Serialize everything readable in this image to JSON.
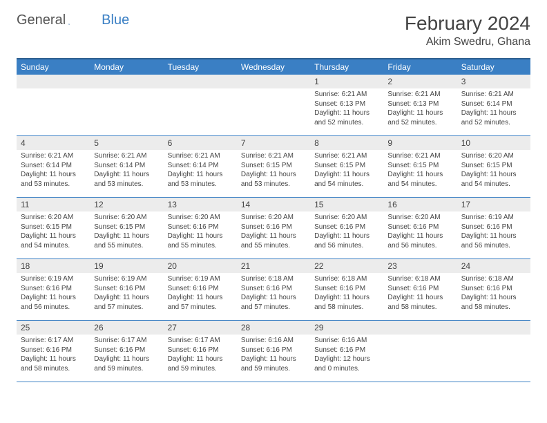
{
  "logo": {
    "text1": "General",
    "text2": "Blue"
  },
  "title": "February 2024",
  "location": "Akim Swedru, Ghana",
  "colors": {
    "header_bg": "#3a7fc4",
    "header_border_top": "#2e5f8f",
    "daynum_bg": "#ececec",
    "row_border": "#3a7fc4",
    "text": "#444444",
    "body_bg": "#ffffff"
  },
  "daynames": [
    "Sunday",
    "Monday",
    "Tuesday",
    "Wednesday",
    "Thursday",
    "Friday",
    "Saturday"
  ],
  "weeks": [
    {
      "nums": [
        "",
        "",
        "",
        "",
        "1",
        "2",
        "3"
      ],
      "cells": [
        null,
        null,
        null,
        null,
        {
          "sr": "Sunrise: 6:21 AM",
          "ss": "Sunset: 6:13 PM",
          "dl": "Daylight: 11 hours and 52 minutes."
        },
        {
          "sr": "Sunrise: 6:21 AM",
          "ss": "Sunset: 6:13 PM",
          "dl": "Daylight: 11 hours and 52 minutes."
        },
        {
          "sr": "Sunrise: 6:21 AM",
          "ss": "Sunset: 6:14 PM",
          "dl": "Daylight: 11 hours and 52 minutes."
        }
      ]
    },
    {
      "nums": [
        "4",
        "5",
        "6",
        "7",
        "8",
        "9",
        "10"
      ],
      "cells": [
        {
          "sr": "Sunrise: 6:21 AM",
          "ss": "Sunset: 6:14 PM",
          "dl": "Daylight: 11 hours and 53 minutes."
        },
        {
          "sr": "Sunrise: 6:21 AM",
          "ss": "Sunset: 6:14 PM",
          "dl": "Daylight: 11 hours and 53 minutes."
        },
        {
          "sr": "Sunrise: 6:21 AM",
          "ss": "Sunset: 6:14 PM",
          "dl": "Daylight: 11 hours and 53 minutes."
        },
        {
          "sr": "Sunrise: 6:21 AM",
          "ss": "Sunset: 6:15 PM",
          "dl": "Daylight: 11 hours and 53 minutes."
        },
        {
          "sr": "Sunrise: 6:21 AM",
          "ss": "Sunset: 6:15 PM",
          "dl": "Daylight: 11 hours and 54 minutes."
        },
        {
          "sr": "Sunrise: 6:21 AM",
          "ss": "Sunset: 6:15 PM",
          "dl": "Daylight: 11 hours and 54 minutes."
        },
        {
          "sr": "Sunrise: 6:20 AM",
          "ss": "Sunset: 6:15 PM",
          "dl": "Daylight: 11 hours and 54 minutes."
        }
      ]
    },
    {
      "nums": [
        "11",
        "12",
        "13",
        "14",
        "15",
        "16",
        "17"
      ],
      "cells": [
        {
          "sr": "Sunrise: 6:20 AM",
          "ss": "Sunset: 6:15 PM",
          "dl": "Daylight: 11 hours and 54 minutes."
        },
        {
          "sr": "Sunrise: 6:20 AM",
          "ss": "Sunset: 6:15 PM",
          "dl": "Daylight: 11 hours and 55 minutes."
        },
        {
          "sr": "Sunrise: 6:20 AM",
          "ss": "Sunset: 6:16 PM",
          "dl": "Daylight: 11 hours and 55 minutes."
        },
        {
          "sr": "Sunrise: 6:20 AM",
          "ss": "Sunset: 6:16 PM",
          "dl": "Daylight: 11 hours and 55 minutes."
        },
        {
          "sr": "Sunrise: 6:20 AM",
          "ss": "Sunset: 6:16 PM",
          "dl": "Daylight: 11 hours and 56 minutes."
        },
        {
          "sr": "Sunrise: 6:20 AM",
          "ss": "Sunset: 6:16 PM",
          "dl": "Daylight: 11 hours and 56 minutes."
        },
        {
          "sr": "Sunrise: 6:19 AM",
          "ss": "Sunset: 6:16 PM",
          "dl": "Daylight: 11 hours and 56 minutes."
        }
      ]
    },
    {
      "nums": [
        "18",
        "19",
        "20",
        "21",
        "22",
        "23",
        "24"
      ],
      "cells": [
        {
          "sr": "Sunrise: 6:19 AM",
          "ss": "Sunset: 6:16 PM",
          "dl": "Daylight: 11 hours and 56 minutes."
        },
        {
          "sr": "Sunrise: 6:19 AM",
          "ss": "Sunset: 6:16 PM",
          "dl": "Daylight: 11 hours and 57 minutes."
        },
        {
          "sr": "Sunrise: 6:19 AM",
          "ss": "Sunset: 6:16 PM",
          "dl": "Daylight: 11 hours and 57 minutes."
        },
        {
          "sr": "Sunrise: 6:18 AM",
          "ss": "Sunset: 6:16 PM",
          "dl": "Daylight: 11 hours and 57 minutes."
        },
        {
          "sr": "Sunrise: 6:18 AM",
          "ss": "Sunset: 6:16 PM",
          "dl": "Daylight: 11 hours and 58 minutes."
        },
        {
          "sr": "Sunrise: 6:18 AM",
          "ss": "Sunset: 6:16 PM",
          "dl": "Daylight: 11 hours and 58 minutes."
        },
        {
          "sr": "Sunrise: 6:18 AM",
          "ss": "Sunset: 6:16 PM",
          "dl": "Daylight: 11 hours and 58 minutes."
        }
      ]
    },
    {
      "nums": [
        "25",
        "26",
        "27",
        "28",
        "29",
        "",
        ""
      ],
      "cells": [
        {
          "sr": "Sunrise: 6:17 AM",
          "ss": "Sunset: 6:16 PM",
          "dl": "Daylight: 11 hours and 58 minutes."
        },
        {
          "sr": "Sunrise: 6:17 AM",
          "ss": "Sunset: 6:16 PM",
          "dl": "Daylight: 11 hours and 59 minutes."
        },
        {
          "sr": "Sunrise: 6:17 AM",
          "ss": "Sunset: 6:16 PM",
          "dl": "Daylight: 11 hours and 59 minutes."
        },
        {
          "sr": "Sunrise: 6:16 AM",
          "ss": "Sunset: 6:16 PM",
          "dl": "Daylight: 11 hours and 59 minutes."
        },
        {
          "sr": "Sunrise: 6:16 AM",
          "ss": "Sunset: 6:16 PM",
          "dl": "Daylight: 12 hours and 0 minutes."
        },
        null,
        null
      ]
    }
  ]
}
